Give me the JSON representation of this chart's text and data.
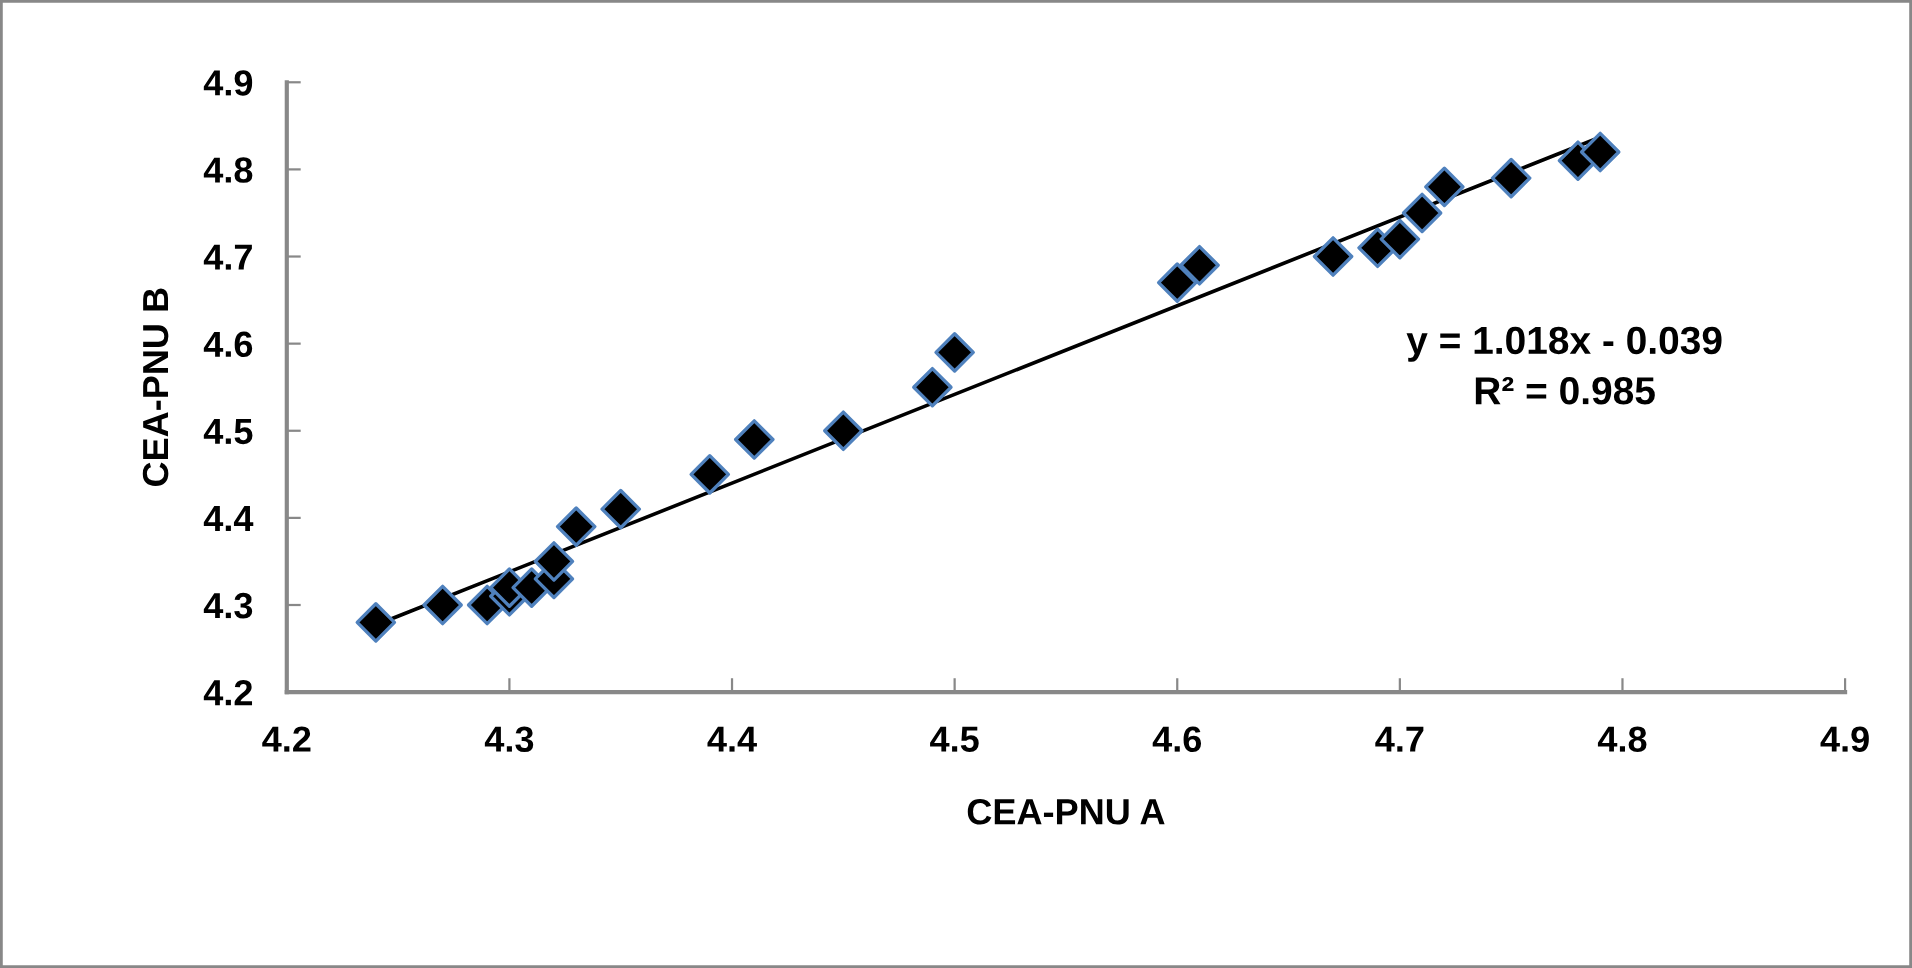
{
  "chart_data": {
    "type": "scatter",
    "xlabel": "CEA-PNU A",
    "ylabel": "CEA-PNU B",
    "xlim": [
      4.2,
      4.9
    ],
    "ylim": [
      4.2,
      4.9
    ],
    "xticks": [
      4.2,
      4.3,
      4.4,
      4.5,
      4.6,
      4.7,
      4.8,
      4.9
    ],
    "yticks": [
      4.2,
      4.3,
      4.4,
      4.5,
      4.6,
      4.7,
      4.8,
      4.9
    ],
    "grid": false,
    "series": [
      {
        "marker": "diamond",
        "color": "#000000",
        "x": [
          4.24,
          4.27,
          4.29,
          4.3,
          4.3,
          4.31,
          4.32,
          4.32,
          4.33,
          4.35,
          4.39,
          4.41,
          4.45,
          4.49,
          4.5,
          4.6,
          4.61,
          4.67,
          4.69,
          4.7,
          4.71,
          4.72,
          4.75,
          4.78,
          4.79
        ],
        "values": [
          4.28,
          4.3,
          4.3,
          4.31,
          4.32,
          4.32,
          4.33,
          4.35,
          4.39,
          4.41,
          4.45,
          4.49,
          4.5,
          4.55,
          4.59,
          4.67,
          4.69,
          4.7,
          4.71,
          4.72,
          4.75,
          4.78,
          4.79,
          4.81,
          4.82
        ]
      },
      {
        "type": "line",
        "color": "#000000",
        "x": [
          4.24,
          4.79
        ],
        "values": [
          4.277,
          4.837
        ]
      }
    ],
    "annotations": [
      "y = 1.018x - 0.039\nR² = 0.985"
    ]
  }
}
